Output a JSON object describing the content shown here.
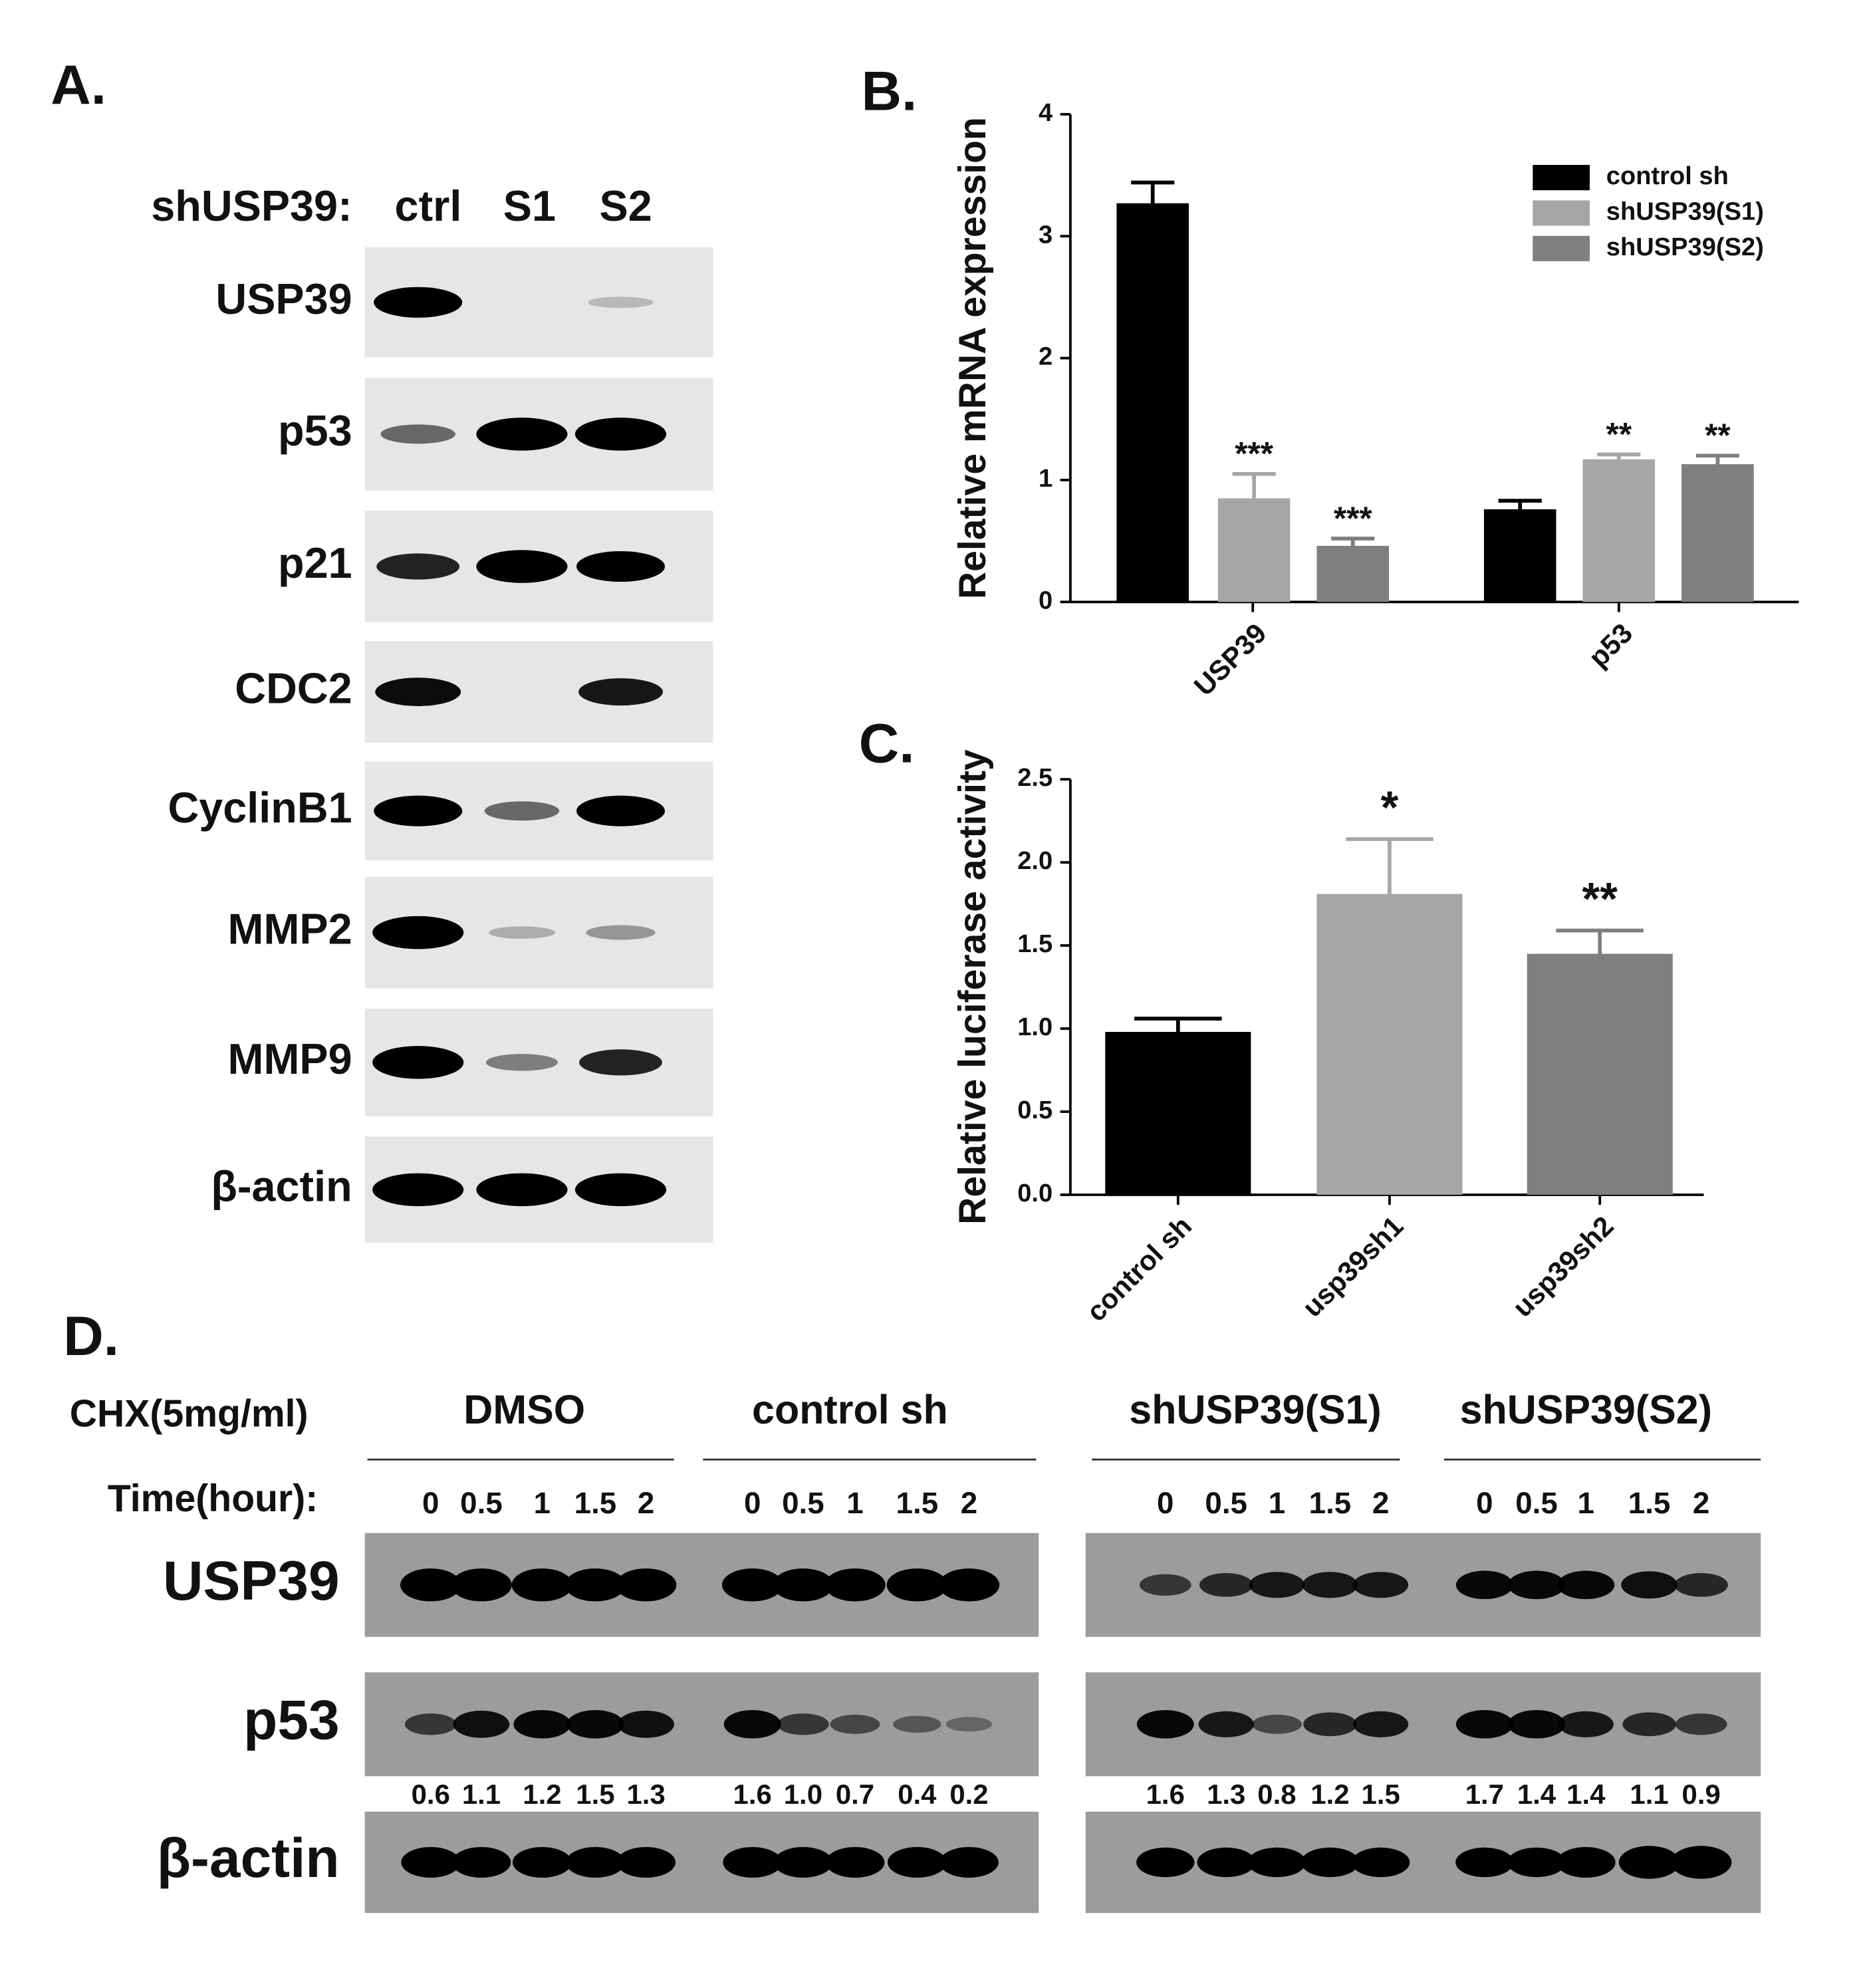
{
  "panel_a": {
    "label": "A.",
    "row_header": "shUSP39:",
    "lanes": [
      "ctrl",
      "S1",
      "S2"
    ],
    "blots": [
      "USP39",
      "p53",
      "p21",
      "CDC2",
      "CyclinB1",
      "MMP2",
      "MMP9",
      "β-actin"
    ]
  },
  "chart_data": [
    {
      "type": "bar",
      "panel": "B.",
      "ylabel": "Relative mRNA expression",
      "categories": [
        "USP39",
        "p53"
      ],
      "series": [
        {
          "name": "control sh",
          "color": "#000000",
          "values": [
            3.27,
            0.76
          ],
          "errors": [
            0.17,
            0.07
          ],
          "annotations": [
            null,
            null
          ]
        },
        {
          "name": "shUSP39(S1)",
          "color": "#a6a6a6",
          "values": [
            0.85,
            1.17
          ],
          "errors": [
            0.2,
            0.04
          ],
          "annotations": [
            "***",
            "**"
          ]
        },
        {
          "name": "shUSP39(S2)",
          "color": "#7f7f7f",
          "values": [
            0.46,
            1.13
          ],
          "errors": [
            0.06,
            0.07
          ],
          "annotations": [
            "***",
            "**"
          ]
        }
      ],
      "ylim": [
        0,
        4
      ],
      "yticks": [
        0,
        1,
        2,
        3,
        4
      ],
      "legend": "upper right"
    },
    {
      "type": "bar",
      "panel": "C.",
      "ylabel": "Relative luciferase activity",
      "categories": [
        "control sh",
        "usp39sh1",
        "usp39sh2"
      ],
      "values": [
        0.98,
        1.81,
        1.45
      ],
      "errors": [
        0.08,
        0.33,
        0.14
      ],
      "annotations": [
        null,
        "*",
        "**"
      ],
      "colors": [
        "#000000",
        "#a6a6a6",
        "#7f7f7f"
      ],
      "ylim": [
        0,
        2.5
      ],
      "yticks": [
        {
          "value": 0,
          "label": "0.0"
        },
        {
          "value": 0.5,
          "label": "0.5"
        },
        {
          "value": 1,
          "label": "1.0"
        },
        {
          "value": 1.5,
          "label": "1.5"
        },
        {
          "value": 2,
          "label": "2.0"
        },
        {
          "value": 2.5,
          "label": "2.5"
        }
      ]
    }
  ],
  "panel_d": {
    "label": "D.",
    "treatment": "CHX(5mg/ml)",
    "groups": [
      "DMSO",
      "control sh",
      "shUSP39(S1)",
      "shUSP39(S2)"
    ],
    "time_label": "Time(hour):",
    "times": [
      0,
      0.5,
      1,
      1.5,
      2
    ],
    "blots": [
      "USP39",
      "p53",
      "β-actin"
    ],
    "quantification": [
      [
        "0.6",
        "1.1",
        "1.2",
        "1.5",
        "1.3"
      ],
      [
        "1.6",
        "1.0",
        "0.7",
        "0.4",
        "0.2"
      ],
      [
        "1.6",
        "1.3",
        "0.8",
        "1.2",
        "1.5"
      ],
      [
        "1.7",
        "1.4",
        "1.4",
        "1.1",
        "0.9"
      ]
    ]
  }
}
